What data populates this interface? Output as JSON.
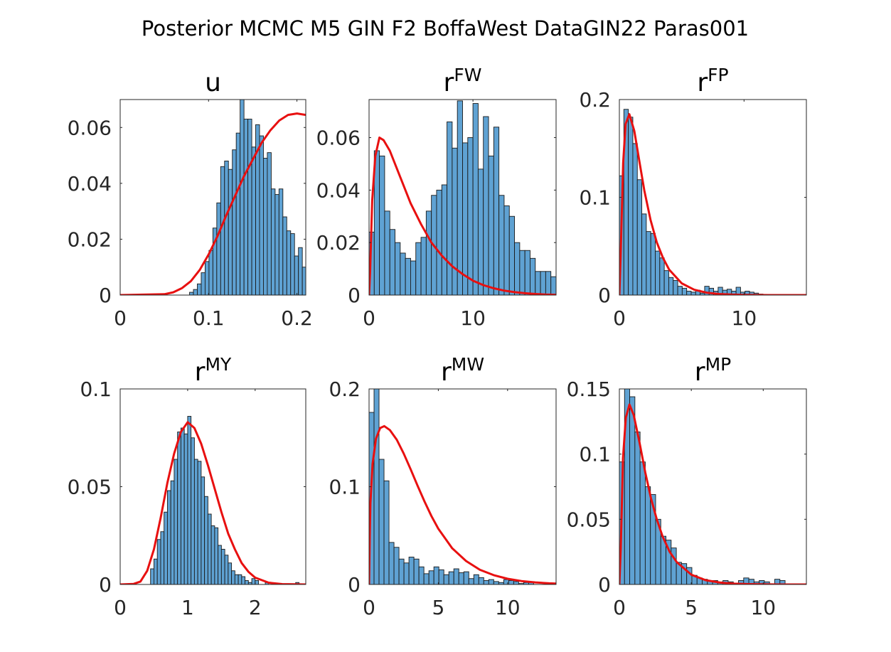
{
  "figure": {
    "title": "Posterior MCMC M5 GIN F2 BoffaWest DataGIN22 Paras001",
    "colors": {
      "bar_fill": "#5fa2d3",
      "bar_edge": "#1a1a1a",
      "curve": "#e81010",
      "axis": "#262626"
    }
  },
  "chart_data": [
    {
      "type": "bar",
      "title": "u",
      "title_base": "u",
      "title_sup": "",
      "xlim": [
        0,
        0.21
      ],
      "ylim": [
        0,
        0.07
      ],
      "xticks": [
        0,
        0.1,
        0.2
      ],
      "xtick_labels": [
        "0",
        "0.1",
        "0.2"
      ],
      "yticks": [
        0,
        0.02,
        0.04,
        0.06
      ],
      "ytick_labels": [
        "0",
        "0.02",
        "0.04",
        "0.06"
      ],
      "histogram": {
        "bin_start": 0.0785,
        "bin_width": 0.0044,
        "values": [
          0.001,
          0.002,
          0.004,
          0.008,
          0.012,
          0.016,
          0.024,
          0.033,
          0.046,
          0.048,
          0.045,
          0.052,
          0.058,
          0.07,
          0.063,
          0.063,
          0.053,
          0.061,
          0.057,
          0.049,
          0.051,
          0.038,
          0.036,
          0.038,
          0.028,
          0.023,
          0.022,
          0.014,
          0.017,
          0.01,
          0.006,
          0.007,
          0.005,
          0.003,
          0.002,
          0.001,
          0.0,
          0.0,
          0.0,
          0.0,
          0.002
        ]
      },
      "curve": {
        "x": [
          0,
          0.05,
          0.06,
          0.07,
          0.08,
          0.09,
          0.1,
          0.11,
          0.12,
          0.13,
          0.14,
          0.15,
          0.16,
          0.17,
          0.18,
          0.19,
          0.2,
          0.21
        ],
        "y": [
          0,
          0.0003,
          0.001,
          0.0025,
          0.005,
          0.009,
          0.0145,
          0.021,
          0.0285,
          0.0355,
          0.0425,
          0.0485,
          0.0545,
          0.059,
          0.0625,
          0.0645,
          0.065,
          0.0645
        ]
      }
    },
    {
      "type": "bar",
      "title": "rFW",
      "title_base": "r",
      "title_sup": "FW",
      "xlim": [
        0,
        18
      ],
      "ylim": [
        0,
        0.0745
      ],
      "xticks": [
        0,
        10
      ],
      "xtick_labels": [
        "0",
        "10"
      ],
      "yticks": [
        0,
        0.02,
        0.04,
        0.06
      ],
      "ytick_labels": [
        "0",
        "0.02",
        "0.04",
        "0.06"
      ],
      "histogram": {
        "bin_start": 0.0,
        "bin_width": 0.5,
        "values": [
          0.024,
          0.055,
          0.053,
          0.032,
          0.025,
          0.02,
          0.016,
          0.014,
          0.013,
          0.02,
          0.022,
          0.032,
          0.038,
          0.04,
          0.042,
          0.066,
          0.056,
          0.074,
          0.058,
          0.06,
          0.073,
          0.048,
          0.068,
          0.053,
          0.064,
          0.038,
          0.034,
          0.03,
          0.02,
          0.017,
          0.017,
          0.014,
          0.009,
          0.009,
          0.009,
          0.007,
          0.006,
          0.003,
          0.001,
          0.002,
          0.001,
          0.0,
          0.002,
          0.0,
          0.002
        ]
      },
      "curve": {
        "x": [
          0,
          0.1,
          0.3,
          0.6,
          1,
          1.4,
          2,
          3,
          4,
          5,
          6,
          7,
          8,
          9,
          10,
          11,
          12,
          13,
          14,
          15,
          16,
          17,
          18
        ],
        "y": [
          0,
          0.009,
          0.036,
          0.053,
          0.06,
          0.059,
          0.055,
          0.045,
          0.035,
          0.027,
          0.02,
          0.015,
          0.011,
          0.008,
          0.0055,
          0.0038,
          0.0026,
          0.0017,
          0.0011,
          0.0007,
          0.0004,
          0.0002,
          0.0001
        ]
      }
    },
    {
      "type": "bar",
      "title": "rFP",
      "title_base": "r",
      "title_sup": "FP",
      "xlim": [
        0,
        15
      ],
      "ylim": [
        0,
        0.2
      ],
      "xticks": [
        0,
        10
      ],
      "xtick_labels": [
        "0",
        "10"
      ],
      "yticks": [
        0,
        0.1,
        0.2
      ],
      "ytick_labels": [
        "0",
        "0.1",
        "0.2"
      ],
      "histogram": {
        "bin_start": 0.0,
        "bin_width": 0.36,
        "values": [
          0.122,
          0.19,
          0.182,
          0.155,
          0.118,
          0.083,
          0.065,
          0.063,
          0.045,
          0.038,
          0.025,
          0.018,
          0.015,
          0.009,
          0.007,
          0.004,
          0.003,
          0.005,
          0.002,
          0.009,
          0.007,
          0.004,
          0.008,
          0.005,
          0.006,
          0.004,
          0.008,
          0.003,
          0.004,
          0.003,
          0.002,
          0.001
        ]
      },
      "curve": {
        "x": [
          0,
          0.1,
          0.3,
          0.5,
          0.8,
          1.2,
          1.6,
          2,
          2.5,
          3,
          3.5,
          4,
          5,
          6,
          7,
          8,
          9,
          10,
          11,
          12,
          13,
          14,
          15
        ],
        "y": [
          0,
          0.04,
          0.135,
          0.175,
          0.185,
          0.168,
          0.137,
          0.107,
          0.077,
          0.054,
          0.038,
          0.026,
          0.012,
          0.0055,
          0.0025,
          0.0011,
          0.0005,
          0.0002,
          0.0001,
          0,
          0,
          0,
          0
        ]
      }
    },
    {
      "type": "bar",
      "title": "rMY",
      "title_base": "r",
      "title_sup": "MY",
      "xlim": [
        0,
        2.75
      ],
      "ylim": [
        0,
        0.1
      ],
      "xticks": [
        0,
        1,
        2
      ],
      "xtick_labels": [
        "0",
        "1",
        "2"
      ],
      "yticks": [
        0,
        0.05,
        0.1
      ],
      "ytick_labels": [
        "0",
        "0.05",
        "0.1"
      ],
      "histogram": {
        "bin_start": 0.45,
        "bin_width": 0.05,
        "values": [
          0.008,
          0.013,
          0.023,
          0.027,
          0.037,
          0.048,
          0.053,
          0.064,
          0.078,
          0.08,
          0.077,
          0.086,
          0.075,
          0.064,
          0.063,
          0.055,
          0.045,
          0.036,
          0.03,
          0.029,
          0.02,
          0.018,
          0.015,
          0.011,
          0.007,
          0.005,
          0.005,
          0.004,
          0.002,
          0.001,
          0.003,
          0.002,
          0.0,
          0.0,
          0.001,
          0.0,
          0.0,
          0.0,
          0.0,
          0.0,
          0.0,
          0.0,
          0.0,
          0.001,
          0.0,
          0.0
        ]
      },
      "curve": {
        "x": [
          0,
          0.2,
          0.3,
          0.4,
          0.5,
          0.6,
          0.7,
          0.8,
          0.9,
          1,
          1.1,
          1.2,
          1.3,
          1.4,
          1.5,
          1.6,
          1.7,
          1.8,
          1.9,
          2,
          2.2,
          2.4,
          2.6,
          2.75
        ],
        "y": [
          0,
          0.0003,
          0.0015,
          0.007,
          0.018,
          0.034,
          0.052,
          0.067,
          0.078,
          0.083,
          0.08,
          0.072,
          0.061,
          0.049,
          0.037,
          0.026,
          0.018,
          0.011,
          0.0065,
          0.0035,
          0.0009,
          0.0002,
          0.0001,
          0
        ]
      }
    },
    {
      "type": "bar",
      "title": "rMW",
      "title_base": "r",
      "title_sup": "MW",
      "xlim": [
        0,
        13.5
      ],
      "ylim": [
        0,
        0.2
      ],
      "xticks": [
        0,
        5,
        10
      ],
      "xtick_labels": [
        "0",
        "5",
        "10"
      ],
      "yticks": [
        0,
        0.1,
        0.2
      ],
      "ytick_labels": [
        "0",
        "0.1",
        "0.2"
      ],
      "histogram": {
        "bin_start": 0.0,
        "bin_width": 0.36,
        "values": [
          0.176,
          0.2,
          0.128,
          0.106,
          0.043,
          0.038,
          0.026,
          0.022,
          0.028,
          0.026,
          0.018,
          0.011,
          0.014,
          0.018,
          0.015,
          0.01,
          0.013,
          0.016,
          0.012,
          0.013,
          0.006,
          0.01,
          0.007,
          0.004,
          0.005,
          0.003,
          0.002,
          0.005,
          0.004,
          0.003,
          0.001,
          0.002,
          0.002
        ]
      },
      "curve": {
        "x": [
          0,
          0.05,
          0.1,
          0.25,
          0.5,
          0.8,
          1.1,
          1.5,
          2,
          2.5,
          3,
          3.5,
          4,
          4.5,
          5,
          6,
          7,
          8,
          9,
          10,
          11,
          12,
          13,
          13.5
        ],
        "y": [
          0,
          0.05,
          0.083,
          0.123,
          0.149,
          0.16,
          0.162,
          0.158,
          0.148,
          0.134,
          0.118,
          0.101,
          0.085,
          0.07,
          0.057,
          0.037,
          0.024,
          0.015,
          0.0095,
          0.0058,
          0.0035,
          0.0021,
          0.0012,
          0.0009
        ]
      }
    },
    {
      "type": "bar",
      "title": "rMP",
      "title_base": "r",
      "title_sup": "MP",
      "xlim": [
        0,
        13
      ],
      "ylim": [
        0,
        0.15
      ],
      "xticks": [
        0,
        5,
        10
      ],
      "xtick_labels": [
        "0",
        "5",
        "10"
      ],
      "yticks": [
        0,
        0.05,
        0.1,
        0.15
      ],
      "ytick_labels": [
        "0",
        "0.05",
        "0.1",
        "0.15"
      ],
      "histogram": {
        "bin_start": 0.0,
        "bin_width": 0.36,
        "values": [
          0.094,
          0.15,
          0.144,
          0.117,
          0.094,
          0.075,
          0.069,
          0.05,
          0.037,
          0.034,
          0.028,
          0.017,
          0.016,
          0.013,
          0.007,
          0.005,
          0.004,
          0.003,
          0.003,
          0.002,
          0.003,
          0.002,
          0.001,
          0.003,
          0.005,
          0.004,
          0.002,
          0.003,
          0.002,
          0.0,
          0.004,
          0.003
        ]
      },
      "curve": {
        "x": [
          0,
          0.1,
          0.25,
          0.45,
          0.7,
          1,
          1.4,
          1.8,
          2.2,
          2.6,
          3,
          3.5,
          4,
          5,
          6,
          7,
          8,
          9,
          10,
          11,
          12,
          13
        ],
        "y": [
          0,
          0.028,
          0.097,
          0.128,
          0.138,
          0.13,
          0.109,
          0.086,
          0.066,
          0.05,
          0.037,
          0.025,
          0.017,
          0.0075,
          0.0033,
          0.0014,
          0.0006,
          0.0003,
          0.0001,
          0,
          0,
          0
        ]
      }
    }
  ]
}
